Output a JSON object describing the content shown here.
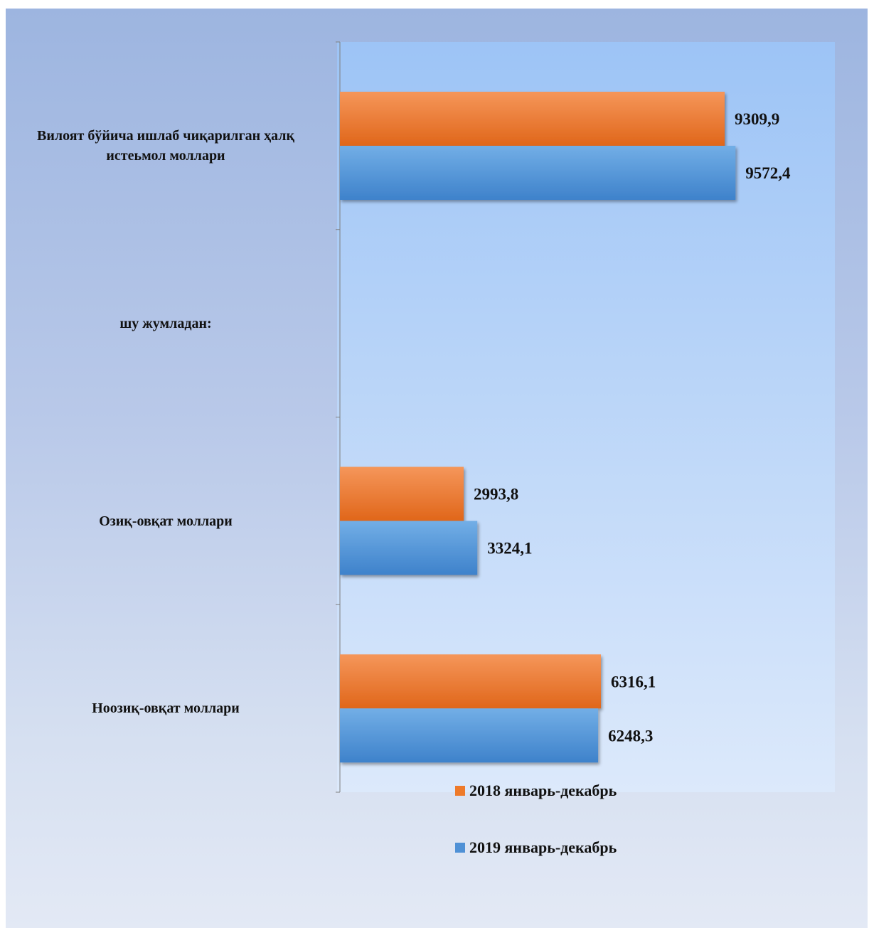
{
  "chart_data": {
    "type": "bar",
    "orientation": "horizontal",
    "categories": [
      "Вилоят бўйича ишлаб чиқарилган ҳалқ истеьмол моллари",
      "шу жумладан:",
      "Озиқ-овқат моллари",
      "Ноозиқ-овқат моллари"
    ],
    "series": [
      {
        "name": "2018 январь-декабрь",
        "color": "#ee7a2a",
        "values": [
          9309.9,
          null,
          2993.8,
          6316.1
        ],
        "labels": [
          "9309,9",
          "",
          "2993,8",
          "6316,1"
        ]
      },
      {
        "name": "2019 январь-декабрь",
        "color": "#4f91d6",
        "values": [
          9572.4,
          null,
          3324.1,
          6248.3
        ],
        "labels": [
          "9572,4",
          "",
          "3324,1",
          "6248,3"
        ]
      }
    ],
    "xlim": [
      0,
      12000
    ],
    "grid": false,
    "legend": "bottom"
  }
}
